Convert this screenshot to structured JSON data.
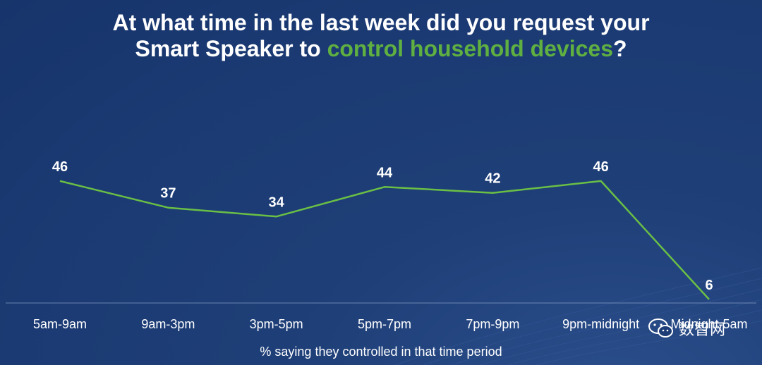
{
  "title": {
    "line1": "At what time in the last week did you request your",
    "line2_prefix": "Smart Speaker to ",
    "line2_accent": "control household devices",
    "line2_suffix": "?"
  },
  "caption": "% saying they controlled in that time period",
  "watermark": {
    "text": "数智网",
    "icon": "wechat-icon"
  },
  "colors": {
    "background": "#1d3c76",
    "accent": "#5fb041",
    "line": "#6abf45",
    "axis": "#9fb3d6"
  },
  "chart_data": {
    "type": "line",
    "categories": [
      "5am-9am",
      "9am-3pm",
      "3pm-5pm",
      "5pm-7pm",
      "7pm-9pm",
      "9pm-midnight",
      "Midnight-5am"
    ],
    "series": [
      {
        "values": [
          46,
          37,
          34,
          44,
          42,
          46,
          6
        ]
      }
    ],
    "xlabel": "% saying they controlled in that time period",
    "ylabel": "",
    "ylim": [
      0,
      50
    ],
    "grid": false,
    "data_labels": true
  }
}
